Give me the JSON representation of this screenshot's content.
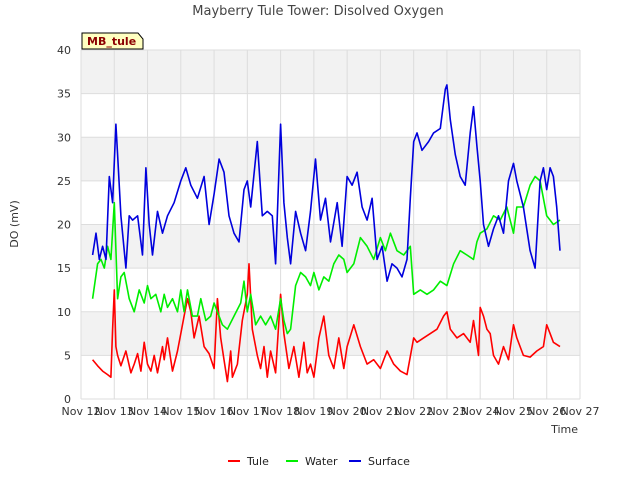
{
  "chart_data": {
    "type": "line",
    "title": "Mayberry Tule Tower: Disolved Oxygen",
    "xlabel": "Time",
    "ylabel": "DO (mV)",
    "badge": "MB_tule",
    "xlim": [
      12,
      27
    ],
    "ylim": [
      0,
      40
    ],
    "x_ticks": [
      {
        "value": 12,
        "label": "Nov 12"
      },
      {
        "value": 13,
        "label": "Nov 13"
      },
      {
        "value": 14,
        "label": "Nov 14"
      },
      {
        "value": 15,
        "label": "Nov 15"
      },
      {
        "value": 16,
        "label": "Nov 16"
      },
      {
        "value": 17,
        "label": "Nov 17"
      },
      {
        "value": 18,
        "label": "Nov 18"
      },
      {
        "value": 19,
        "label": "Nov 19"
      },
      {
        "value": 20,
        "label": "Nov 20"
      },
      {
        "value": 21,
        "label": "Nov 21"
      },
      {
        "value": 22,
        "label": "Nov 22"
      },
      {
        "value": 23,
        "label": "Nov 23"
      },
      {
        "value": 24,
        "label": "Nov 24"
      },
      {
        "value": 25,
        "label": "Nov 25"
      },
      {
        "value": 26,
        "label": "Nov 26"
      },
      {
        "value": 27,
        "label": "Nov 27"
      }
    ],
    "y_ticks": [
      0,
      5,
      10,
      15,
      20,
      25,
      30,
      35,
      40
    ],
    "grid": true,
    "legend_position": "bottom-center",
    "series": [
      {
        "name": "Tule",
        "color": "#ff0000",
        "x": [
          12.35,
          12.5,
          12.65,
          12.8,
          12.9,
          12.95,
          13.0,
          13.05,
          13.1,
          13.2,
          13.35,
          13.5,
          13.6,
          13.7,
          13.8,
          13.9,
          14.0,
          14.1,
          14.2,
          14.3,
          14.45,
          14.5,
          14.6,
          14.75,
          14.9,
          15.0,
          15.1,
          15.2,
          15.3,
          15.4,
          15.55,
          15.7,
          15.85,
          16.0,
          16.1,
          16.2,
          16.3,
          16.4,
          16.5,
          16.55,
          16.7,
          16.85,
          17.0,
          17.05,
          17.15,
          17.3,
          17.4,
          17.5,
          17.6,
          17.7,
          17.85,
          18.0,
          18.1,
          18.25,
          18.4,
          18.55,
          18.7,
          18.8,
          18.9,
          19.0,
          19.15,
          19.3,
          19.45,
          19.6,
          19.75,
          19.9,
          20.0,
          20.2,
          20.4,
          20.6,
          20.8,
          21.0,
          21.2,
          21.4,
          21.6,
          21.8,
          22.0,
          22.1,
          22.3,
          22.5,
          22.7,
          22.9,
          23.0,
          23.1,
          23.3,
          23.5,
          23.7,
          23.8,
          23.95,
          24.0,
          24.1,
          24.2,
          24.3,
          24.4,
          24.55,
          24.7,
          24.85,
          25.0,
          25.1,
          25.3,
          25.5,
          25.7,
          25.9,
          26.0,
          26.1,
          26.2,
          26.4
        ],
        "values": [
          4.5,
          3.8,
          3.2,
          2.8,
          2.5,
          8.0,
          12.5,
          6.0,
          5.0,
          3.8,
          5.5,
          3.0,
          4.0,
          5.2,
          3.2,
          6.5,
          4.0,
          3.2,
          5.0,
          3.0,
          6.0,
          4.5,
          7.0,
          3.2,
          5.5,
          7.5,
          9.5,
          11.5,
          10.0,
          7.0,
          9.5,
          6.0,
          5.2,
          3.5,
          11.5,
          7.0,
          4.5,
          2.0,
          5.5,
          2.5,
          4.0,
          9.0,
          12.0,
          15.5,
          8.0,
          5.0,
          3.5,
          6.0,
          2.5,
          5.5,
          3.0,
          12.0,
          7.5,
          3.5,
          6.0,
          2.5,
          6.5,
          3.0,
          4.0,
          2.5,
          7.0,
          9.5,
          5.0,
          3.5,
          7.0,
          3.5,
          6.0,
          8.5,
          6.0,
          4.0,
          4.5,
          3.5,
          5.5,
          4.0,
          3.2,
          2.8,
          7.0,
          6.5,
          7.0,
          7.5,
          8.0,
          9.5,
          10.0,
          8.0,
          7.0,
          7.5,
          6.5,
          9.0,
          5.0,
          10.5,
          9.5,
          8.0,
          7.5,
          5.0,
          4.0,
          6.0,
          4.5,
          8.5,
          7.0,
          5.0,
          4.8,
          5.5,
          6.0,
          8.5,
          7.5,
          6.5,
          6.0
        ]
      },
      {
        "name": "Water",
        "color": "#00ee00",
        "x": [
          12.35,
          12.5,
          12.6,
          12.7,
          12.8,
          12.9,
          13.0,
          13.1,
          13.2,
          13.3,
          13.45,
          13.6,
          13.75,
          13.9,
          14.0,
          14.1,
          14.25,
          14.4,
          14.5,
          14.6,
          14.75,
          14.9,
          15.0,
          15.1,
          15.2,
          15.35,
          15.5,
          15.6,
          15.75,
          15.9,
          16.0,
          16.1,
          16.25,
          16.4,
          16.6,
          16.8,
          16.9,
          17.0,
          17.1,
          17.25,
          17.4,
          17.55,
          17.7,
          17.85,
          18.0,
          18.1,
          18.2,
          18.3,
          18.45,
          18.6,
          18.75,
          18.9,
          19.0,
          19.15,
          19.3,
          19.45,
          19.6,
          19.75,
          19.9,
          20.0,
          20.2,
          20.4,
          20.6,
          20.8,
          21.0,
          21.15,
          21.3,
          21.5,
          21.7,
          21.9,
          22.0,
          22.2,
          22.4,
          22.6,
          22.8,
          23.0,
          23.2,
          23.4,
          23.6,
          23.8,
          23.9,
          24.0,
          24.2,
          24.4,
          24.6,
          24.8,
          25.0,
          25.1,
          25.3,
          25.5,
          25.65,
          25.8,
          25.9,
          26.0,
          26.1,
          26.2,
          26.4
        ],
        "values": [
          11.5,
          15.5,
          16.0,
          15.0,
          17.5,
          16.0,
          22.5,
          11.5,
          14.0,
          14.5,
          11.5,
          10.0,
          12.5,
          11.0,
          13.0,
          11.5,
          12.0,
          10.0,
          12.0,
          10.5,
          11.5,
          10.0,
          12.5,
          10.0,
          12.5,
          9.5,
          9.5,
          11.5,
          9.0,
          9.5,
          11.0,
          10.0,
          8.5,
          8.0,
          9.5,
          11.0,
          13.5,
          10.0,
          12.0,
          8.5,
          9.5,
          8.5,
          9.5,
          8.0,
          11.5,
          9.0,
          7.5,
          8.0,
          13.0,
          14.5,
          14.0,
          13.0,
          14.5,
          12.5,
          14.0,
          13.5,
          15.5,
          16.5,
          16.0,
          14.5,
          15.5,
          18.5,
          17.5,
          16.0,
          18.5,
          17.0,
          19.0,
          17.0,
          16.5,
          17.5,
          12.0,
          12.5,
          12.0,
          12.5,
          13.5,
          13.0,
          15.5,
          17.0,
          16.5,
          16.0,
          18.0,
          19.0,
          19.5,
          21.0,
          20.5,
          22.0,
          19.0,
          22.0,
          22.0,
          24.5,
          25.5,
          25.0,
          23.0,
          21.0,
          20.5,
          20.0,
          20.5
        ]
      },
      {
        "name": "Surface",
        "color": "#0000dd",
        "x": [
          12.35,
          12.45,
          12.55,
          12.65,
          12.75,
          12.85,
          12.95,
          13.05,
          13.1,
          13.2,
          13.35,
          13.45,
          13.55,
          13.7,
          13.85,
          13.95,
          14.05,
          14.15,
          14.3,
          14.45,
          14.6,
          14.8,
          15.0,
          15.15,
          15.3,
          15.5,
          15.7,
          15.85,
          16.0,
          16.15,
          16.3,
          16.45,
          16.6,
          16.75,
          16.9,
          17.0,
          17.1,
          17.3,
          17.45,
          17.6,
          17.75,
          17.85,
          18.0,
          18.1,
          18.2,
          18.3,
          18.45,
          18.6,
          18.75,
          18.9,
          19.05,
          19.2,
          19.35,
          19.5,
          19.7,
          19.85,
          20.0,
          20.15,
          20.3,
          20.45,
          20.6,
          20.75,
          20.9,
          21.05,
          21.2,
          21.35,
          21.5,
          21.65,
          21.8,
          21.9,
          22.0,
          22.1,
          22.25,
          22.45,
          22.6,
          22.8,
          22.95,
          23.0,
          23.1,
          23.25,
          23.4,
          23.55,
          23.7,
          23.8,
          23.9,
          24.0,
          24.1,
          24.25,
          24.4,
          24.55,
          24.7,
          24.85,
          25.0,
          25.1,
          25.3,
          25.5,
          25.65,
          25.8,
          25.9,
          26.0,
          26.1,
          26.2,
          26.3,
          26.4
        ],
        "values": [
          16.5,
          19.0,
          16.0,
          17.5,
          16.0,
          25.5,
          22.5,
          31.5,
          28.0,
          21.0,
          15.0,
          21.0,
          20.5,
          21.0,
          16.5,
          26.5,
          20.0,
          16.5,
          21.5,
          19.0,
          21.0,
          22.5,
          25.0,
          26.5,
          24.5,
          23.0,
          25.5,
          20.0,
          23.5,
          27.5,
          26.0,
          21.0,
          19.0,
          18.0,
          24.0,
          25.0,
          22.0,
          29.5,
          21.0,
          21.5,
          21.0,
          15.5,
          31.5,
          22.5,
          18.5,
          15.5,
          21.5,
          19.0,
          17.0,
          21.5,
          27.5,
          20.5,
          23.0,
          18.0,
          22.5,
          17.5,
          25.5,
          24.5,
          26.0,
          22.0,
          20.5,
          23.0,
          16.0,
          17.5,
          13.5,
          15.5,
          15.0,
          14.0,
          16.0,
          23.0,
          29.5,
          30.5,
          28.5,
          29.5,
          30.5,
          31.0,
          35.5,
          36.0,
          32.0,
          28.0,
          25.5,
          24.5,
          30.5,
          33.5,
          29.0,
          25.0,
          20.0,
          17.5,
          19.5,
          21.0,
          19.0,
          25.0,
          27.0,
          25.0,
          22.0,
          17.0,
          15.0,
          25.0,
          26.5,
          24.0,
          26.5,
          25.5,
          22.0,
          17.0
        ]
      }
    ]
  }
}
